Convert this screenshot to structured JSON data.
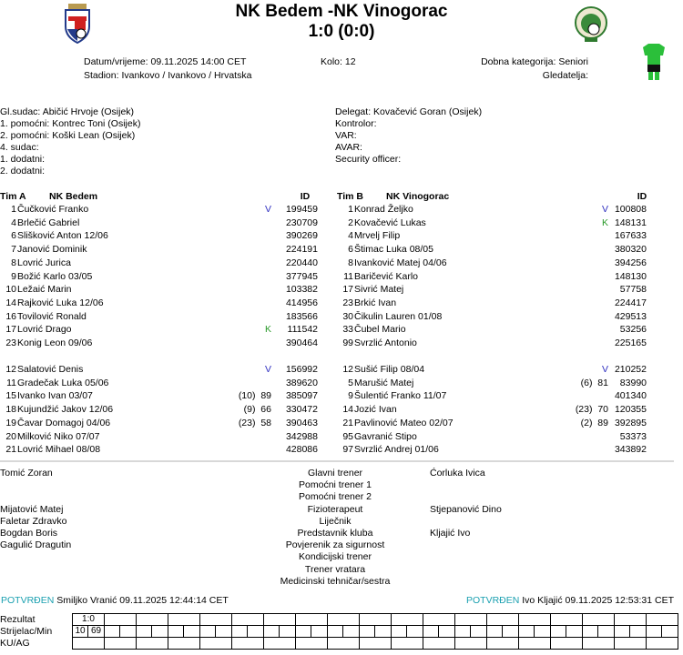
{
  "header": {
    "home": "NK Bedem",
    "away": "NK Vinogorac",
    "separator": "-",
    "score": "1:0 (0:0)"
  },
  "info": {
    "datetime": "Datum/vrijeme: 09.11.2025 14:00 CET",
    "stadium": "Stadion: Ivankovo / Ivankovo / Hrvatska",
    "round": "Kolo: 12",
    "category": "Dobna kategorija: Seniori",
    "spectators": "Gledatelja:"
  },
  "officials_left": [
    "Gl.sudac: Abičić Hrvoje (Osijek)",
    "1. pomoćni: Kontrec Toni (Osijek)",
    "2. pomoćni: Koški Lean (Osijek)",
    "4. sudac:",
    "1. dodatni:",
    "2. dodatni:"
  ],
  "officials_right": [
    "Delegat: Kovačević Goran (Osijek)",
    "Kontrolor:",
    "VAR:",
    "AVAR:",
    "Security officer:"
  ],
  "teamA": {
    "label": "Tim A",
    "name": "NK Bedem",
    "id_label": "ID",
    "starters": [
      [
        "1",
        "Čučković Franko",
        "V",
        "199459"
      ],
      [
        "4",
        "Brlečić Gabriel",
        "",
        "230709"
      ],
      [
        "6",
        "Slišković Anton 12/06",
        "",
        "390269"
      ],
      [
        "7",
        "Janović Dominik",
        "",
        "224191"
      ],
      [
        "8",
        "Lovrić Jurica",
        "",
        "220440"
      ],
      [
        "9",
        "Božić Karlo 03/05",
        "",
        "377945"
      ],
      [
        "10",
        "Ležaić Marin",
        "",
        "103382"
      ],
      [
        "14",
        "Rajković Luka 12/06",
        "",
        "414956"
      ],
      [
        "16",
        "Tovilović Ronald",
        "",
        "183566"
      ],
      [
        "17",
        "Lovrić Drago",
        "K",
        "111542"
      ],
      [
        "23",
        "Konig Leon 09/06",
        "",
        "390464"
      ]
    ],
    "subs": [
      [
        "12",
        "Salatović Denis",
        "V",
        "156992"
      ],
      [
        "11",
        "Gradečak Luka 05/06",
        "",
        "389620"
      ],
      [
        "15",
        "Ivanko Ivan 03/07",
        "(10)  89",
        "385097"
      ],
      [
        "18",
        "Kujundžić Jakov 12/06",
        "(9)  66",
        "330472"
      ],
      [
        "19",
        "Čavar Domagoj 04/06",
        "(23)  58",
        "390463"
      ],
      [
        "20",
        "Milković Niko 07/07",
        "",
        "342988"
      ],
      [
        "21",
        "Lovrić Mihael 08/08",
        "",
        "428086"
      ]
    ]
  },
  "teamB": {
    "label": "Tim B",
    "name": "NK Vinogorac",
    "id_label": "ID",
    "starters": [
      [
        "1",
        "Konrad Željko",
        "V",
        "100808"
      ],
      [
        "2",
        "Kovačević Lukas",
        "K",
        "148131"
      ],
      [
        "4",
        "Mrvelj Filip",
        "",
        "167633"
      ],
      [
        "6",
        "Štimac Luka 08/05",
        "",
        "380320"
      ],
      [
        "8",
        "Ivanković Matej 04/06",
        "",
        "394256"
      ],
      [
        "11",
        "Baričević Karlo",
        "",
        "148130"
      ],
      [
        "17",
        "Sivrić Matej",
        "",
        "57758"
      ],
      [
        "23",
        "Brkić Ivan",
        "",
        "224417"
      ],
      [
        "30",
        "Čikulin Lauren 01/08",
        "",
        "429513"
      ],
      [
        "33",
        "Čubel Mario",
        "",
        "53256"
      ],
      [
        "99",
        "Svrzlić Antonio",
        "",
        "225165"
      ]
    ],
    "subs": [
      [
        "12",
        "Sušić Filip 08/04",
        "V",
        "210252"
      ],
      [
        "5",
        "Marušić Matej",
        "(6)  81",
        "83990"
      ],
      [
        "9",
        "Šulentić Franko 11/07",
        "",
        "401340"
      ],
      [
        "14",
        "Jozić Ivan",
        "(23)  70",
        "120355"
      ],
      [
        "21",
        "Pavlinović Mateo 02/07",
        "(2)  89",
        "392895"
      ],
      [
        "95",
        "Gavranić Stipo",
        "",
        "53373"
      ],
      [
        "97",
        "Svrzlić Andrej 01/06",
        "",
        "343892"
      ]
    ]
  },
  "staff": {
    "roles": [
      "Glavni trener",
      "Pomoćni trener 1",
      "Pomoćni trener 2",
      "Fizioterapeut",
      "Liječnik",
      "Predstavnik kluba",
      "Povjerenik za sigurnost",
      "Kondicijski trener",
      "Trener vratara",
      "Medicinski tehničar/sestra"
    ],
    "home": [
      "Tomić Zoran",
      "",
      "",
      "Mijatović Matej",
      "Faletar Zdravko",
      "Bogdan Boris",
      "Gagulić Dragutin",
      "",
      "",
      ""
    ],
    "away": [
      "Ćorluka Ivica",
      "",
      "",
      "Stjepanović Dino",
      "",
      "Kljajić Ivo",
      "",
      "",
      "",
      ""
    ]
  },
  "confirm": {
    "label": "POTVRĐEN",
    "home": "Smiljko Vranić 09.11.2025 12:44:14 CET",
    "away": "Ivo Kljajić 09.11.2025 12:53:31 CET"
  },
  "grid": {
    "row_labels": [
      "Rezultat",
      "Strijelac/Min",
      "KU/AG"
    ],
    "result": "1:0",
    "scorer": "10",
    "minute": "69"
  },
  "colors": {
    "captain_v": "#3030c0",
    "captain_k": "#2a9a2a",
    "confirmed": "#1aa0b0"
  }
}
